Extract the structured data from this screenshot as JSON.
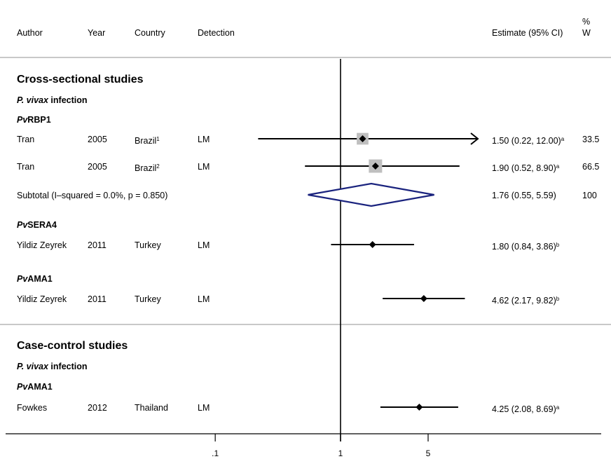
{
  "header": {
    "author": "Author",
    "year": "Year",
    "country": "Country",
    "detection": "Detection",
    "estimate": "Estimate (95% CI)",
    "weight_top": "%",
    "weight_bottom": "W"
  },
  "sections": [
    {
      "title": "Cross-sectional studies",
      "subtitle_italic": "P. vivax",
      "subtitle_rest": " infection"
    },
    {
      "title": "Case-control studies",
      "subtitle_italic": "P. vivax",
      "subtitle_rest": " infection"
    }
  ],
  "groups": [
    {
      "italic": "Pv",
      "rest": "RBP1"
    },
    {
      "italic": "Pv",
      "rest": "SERA4"
    },
    {
      "italic": "Pv",
      "rest": "AMA1"
    },
    {
      "italic": "Pv",
      "rest": "AMA1"
    }
  ],
  "rows": [
    {
      "author": "Tran",
      "year": "2005",
      "country": "Brazil",
      "country_sup": "1",
      "detection": "LM",
      "estimate": "1.50 (0.22, 12.00)",
      "estimate_sup": "a",
      "weight": "33.5"
    },
    {
      "author": "Tran",
      "year": "2005",
      "country": "Brazil",
      "country_sup": "2",
      "detection": "LM",
      "estimate": "1.90 (0.52, 8.90)",
      "estimate_sup": "a",
      "weight": "66.5"
    },
    {
      "author": "Yildiz Zeyrek",
      "year": "2011",
      "country": "Turkey",
      "country_sup": "",
      "detection": "LM",
      "estimate": "1.80 (0.84, 3.86)",
      "estimate_sup": "b",
      "weight": ""
    },
    {
      "author": "Yildiz Zeyrek",
      "year": "2011",
      "country": "Turkey",
      "country_sup": "",
      "detection": "LM",
      "estimate": "4.62 (2.17, 9.82)",
      "estimate_sup": "b",
      "weight": ""
    },
    {
      "author": "Fowkes",
      "year": "2012",
      "country": "Thailand",
      "country_sup": "",
      "detection": "LM",
      "estimate": "4.25 (2.08, 8.69)",
      "estimate_sup": "a",
      "weight": ""
    }
  ],
  "subtotal": {
    "label": "Subtotal  (I–squared = 0.0%, p = 0.850)",
    "estimate": "1.76 (0.55, 5.59)",
    "weight": "100"
  },
  "chart_data": {
    "type": "forest",
    "scale": "log",
    "reference_line": 1,
    "xticks": [
      ".1",
      "1",
      "5"
    ],
    "colors": {
      "line": "#000000",
      "weight_box": "#bfbfbf",
      "diamond": "#1a237e",
      "divider": "#c8c8c8"
    },
    "studies": [
      {
        "estimate": 1.5,
        "lower": 0.22,
        "upper": 12.0,
        "weight": 33.5,
        "upper_truncated": true
      },
      {
        "estimate": 1.9,
        "lower": 0.52,
        "upper": 8.9,
        "weight": 66.5
      },
      {
        "estimate": 1.8,
        "lower": 0.84,
        "upper": 3.86
      },
      {
        "estimate": 4.62,
        "lower": 2.17,
        "upper": 9.82
      },
      {
        "estimate": 4.25,
        "lower": 2.08,
        "upper": 8.69
      }
    ],
    "subtotal": {
      "estimate": 1.76,
      "lower": 0.55,
      "upper": 5.59
    }
  }
}
